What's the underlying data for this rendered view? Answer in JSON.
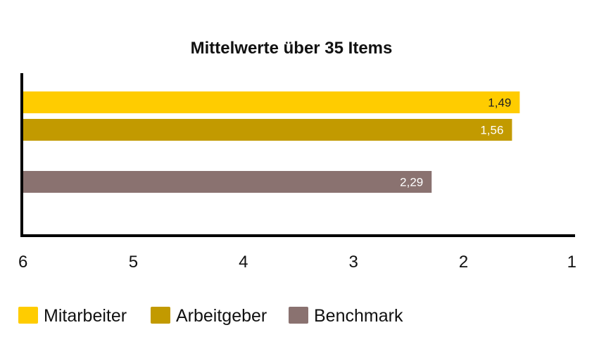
{
  "chart_data": {
    "type": "bar",
    "orientation": "horizontal",
    "title": "Mittelwerte über 35 Items",
    "xlabel": "",
    "ylabel": "",
    "xlim": [
      6,
      1
    ],
    "x_reversed": true,
    "x_ticks": [
      "6",
      "5",
      "4",
      "3",
      "2",
      "1"
    ],
    "grid": false,
    "legend_position": "bottom",
    "series": [
      {
        "name": "Mitarbeiter",
        "value": 1.49,
        "label": "1,49",
        "color": "#FFCC00",
        "label_color": "#222222"
      },
      {
        "name": "Arbeitgeber",
        "value": 1.56,
        "label": "1,56",
        "color": "#C29A00",
        "label_color": "#ffffff"
      },
      {
        "name": "Benchmark",
        "value": 2.29,
        "label": "2,29",
        "color": "#8A7270",
        "label_color": "#ffffff"
      }
    ]
  }
}
